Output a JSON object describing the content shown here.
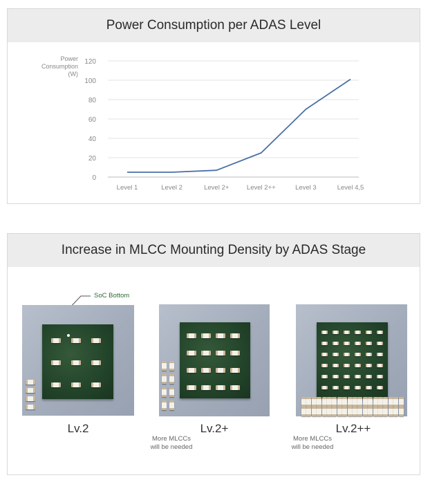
{
  "chart_data": {
    "type": "line",
    "title": "Power Consumption per ADAS Level",
    "ylabel": "Power Consumption (W)",
    "ylabel_lines": [
      "Power",
      "Consumption",
      "(W)"
    ],
    "xlabel": "",
    "categories": [
      "Level 1",
      "Level 2",
      "Level 2+",
      "Level 2++",
      "Level 3",
      "Level 4,5"
    ],
    "values": [
      5,
      5,
      7,
      25,
      70,
      101
    ],
    "ylim": [
      0,
      120
    ],
    "yticks": [
      0,
      20,
      40,
      60,
      80,
      100,
      120
    ],
    "grid": true,
    "line_color": "#4a6fa5"
  },
  "density": {
    "title": "Increase in MLCC Mounting Density by ADAS Stage",
    "callout": "SoC Bottom",
    "stages": [
      {
        "label": "Lv.2",
        "note": ""
      },
      {
        "label": "Lv.2+",
        "note_lines": [
          "More MLCCs",
          "will be needed"
        ]
      },
      {
        "label": "Lv.2++",
        "note_lines": [
          "More MLCCs",
          "will be needed"
        ]
      }
    ],
    "colors": {
      "board": "#a8b0bf",
      "chip": "#2b4b30",
      "callout": "#2f6a34"
    }
  }
}
